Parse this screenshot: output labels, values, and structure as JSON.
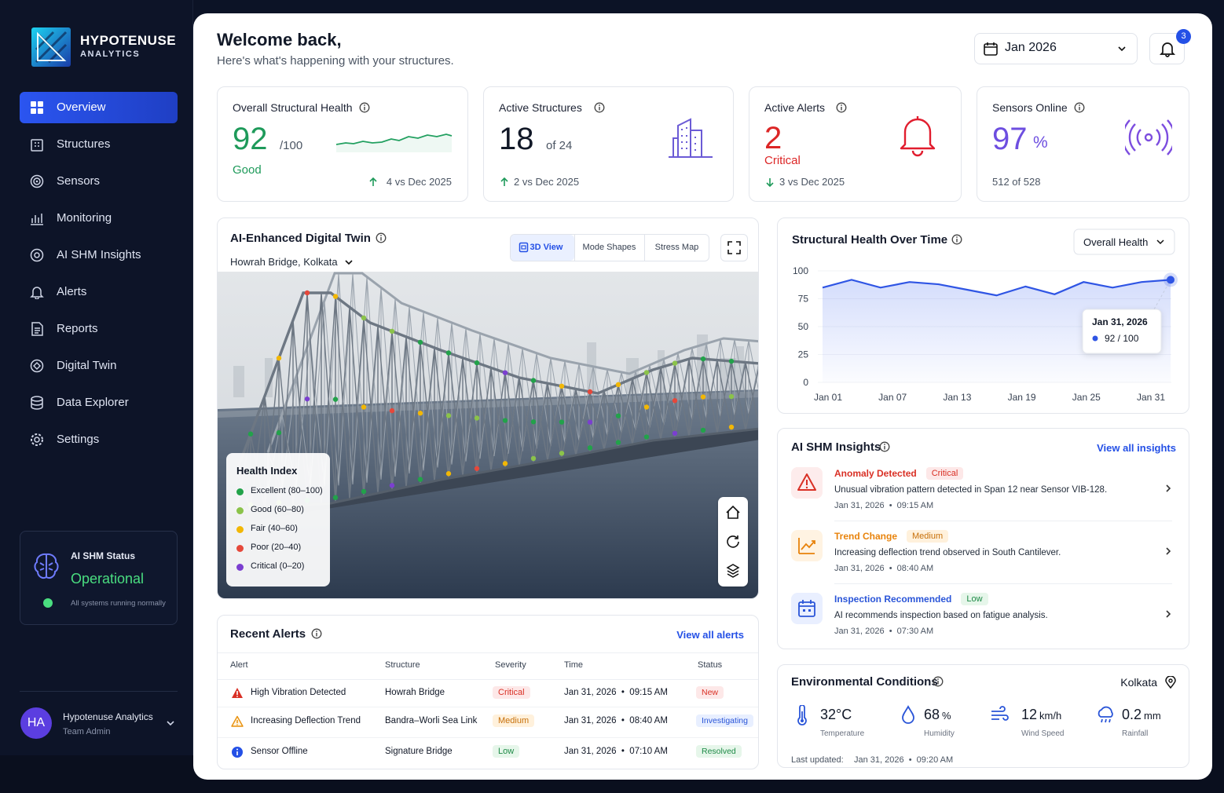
{
  "brand": {
    "name": "HYPOTENUSE",
    "sub": "ANALYTICS"
  },
  "nav": [
    "Overview",
    "Structures",
    "Sensors",
    "Monitoring",
    "AI SHM Insights",
    "Alerts",
    "Reports",
    "Digital Twin",
    "Data Explorer",
    "Settings"
  ],
  "status": {
    "title": "AI SHM Status",
    "state": "Operational",
    "note": "All systems running normally"
  },
  "user": {
    "initials": "HA",
    "name": "Hypotenuse Analytics",
    "role": "Team Admin"
  },
  "header": {
    "title": "Welcome back,",
    "subtitle": "Here's what's happening with your structures.",
    "date": "Jan 2026",
    "notifications": 3
  },
  "kpis": [
    {
      "label": "Overall Structural Health",
      "value": 92,
      "unit": "/100",
      "status": "Good",
      "delta": "4 vs Dec 2025"
    },
    {
      "label": "Active Structures",
      "value": 18,
      "unit": "of 24",
      "delta": "2 vs Dec 2025"
    },
    {
      "label": "Active Alerts",
      "value": 2,
      "status": "Critical",
      "delta": "3 vs Dec 2025"
    },
    {
      "label": "Sensors Online",
      "value": 97,
      "unit": "%",
      "sub": "512 of 528"
    }
  ],
  "twin": {
    "title": "AI-Enhanced Digital Twin",
    "location": "Howrah Bridge, Kolkata",
    "tabs": [
      "3D View",
      "Mode Shapes",
      "Stress Map"
    ],
    "legend_title": "Health Index",
    "legend": [
      "Excellent (80–100)",
      "Good (60–80)",
      "Fair (40–60)",
      "Poor (20–40)",
      "Critical (0–20)"
    ]
  },
  "health_chart": {
    "type": "line",
    "title": "Structural Health Over Time",
    "selector": "Overall Health",
    "categories": [
      "Jan 01",
      "Jan 07",
      "Jan 13",
      "Jan 19",
      "Jan 25",
      "Jan 31"
    ],
    "values": [
      85,
      92,
      85,
      90,
      88,
      83,
      78,
      86,
      79,
      90,
      85,
      90,
      92
    ],
    "color": "#2f55e4",
    "ylim": [
      0,
      100
    ],
    "yticks": [
      0,
      25,
      50,
      75,
      100
    ],
    "tooltip": {
      "date": "Jan 31, 2026",
      "value": "92 / 100"
    }
  },
  "insights": {
    "title": "AI SHM Insights",
    "link": "View all insights",
    "items": [
      {
        "title": "Anomaly Detected",
        "severity": "Critical",
        "text": "Unusual vibration pattern detected in Span 12 near Sensor VIB-128.",
        "time": "Jan 31, 2026  •  09:15 AM"
      },
      {
        "title": "Trend Change",
        "severity": "Medium",
        "text": "Increasing deflection trend observed in South Cantilever.",
        "time": "Jan 31, 2026  •  08:40 AM"
      },
      {
        "title": "Inspection Recommended",
        "severity": "Low",
        "text": "AI recommends inspection based on fatigue analysis.",
        "time": "Jan 31, 2026  •  07:30 AM"
      }
    ]
  },
  "environment": {
    "title": "Environmental Conditions",
    "location": "Kolkata",
    "items": [
      {
        "value": 32,
        "unit": "°C",
        "label": "Temperature"
      },
      {
        "value": 68,
        "unit": "%",
        "label": "Humidity"
      },
      {
        "value": 12,
        "unit": "km/h",
        "label": "Wind Speed"
      },
      {
        "value": 0.2,
        "unit": "mm",
        "label": "Rainfall"
      }
    ],
    "updated_label": "Last updated:",
    "updated": "Jan 31, 2026  •  09:20 AM"
  },
  "alerts": {
    "title": "Recent Alerts",
    "link": "View all alerts",
    "columns": [
      "Alert",
      "Structure",
      "Severity",
      "Time",
      "Status"
    ],
    "rows": [
      [
        "High Vibration Detected",
        "Howrah Bridge",
        "Critical",
        "Jan 31, 2026  •  09:15 AM",
        "New"
      ],
      [
        "Increasing Deflection Trend",
        "Bandra–Worli Sea Link",
        "Medium",
        "Jan 31, 2026  •  08:40 AM",
        "Investigating"
      ],
      [
        "Sensor Offline",
        "Signature Bridge",
        "Low",
        "Jan 31, 2026  •  07:10 AM",
        "Resolved"
      ]
    ]
  }
}
